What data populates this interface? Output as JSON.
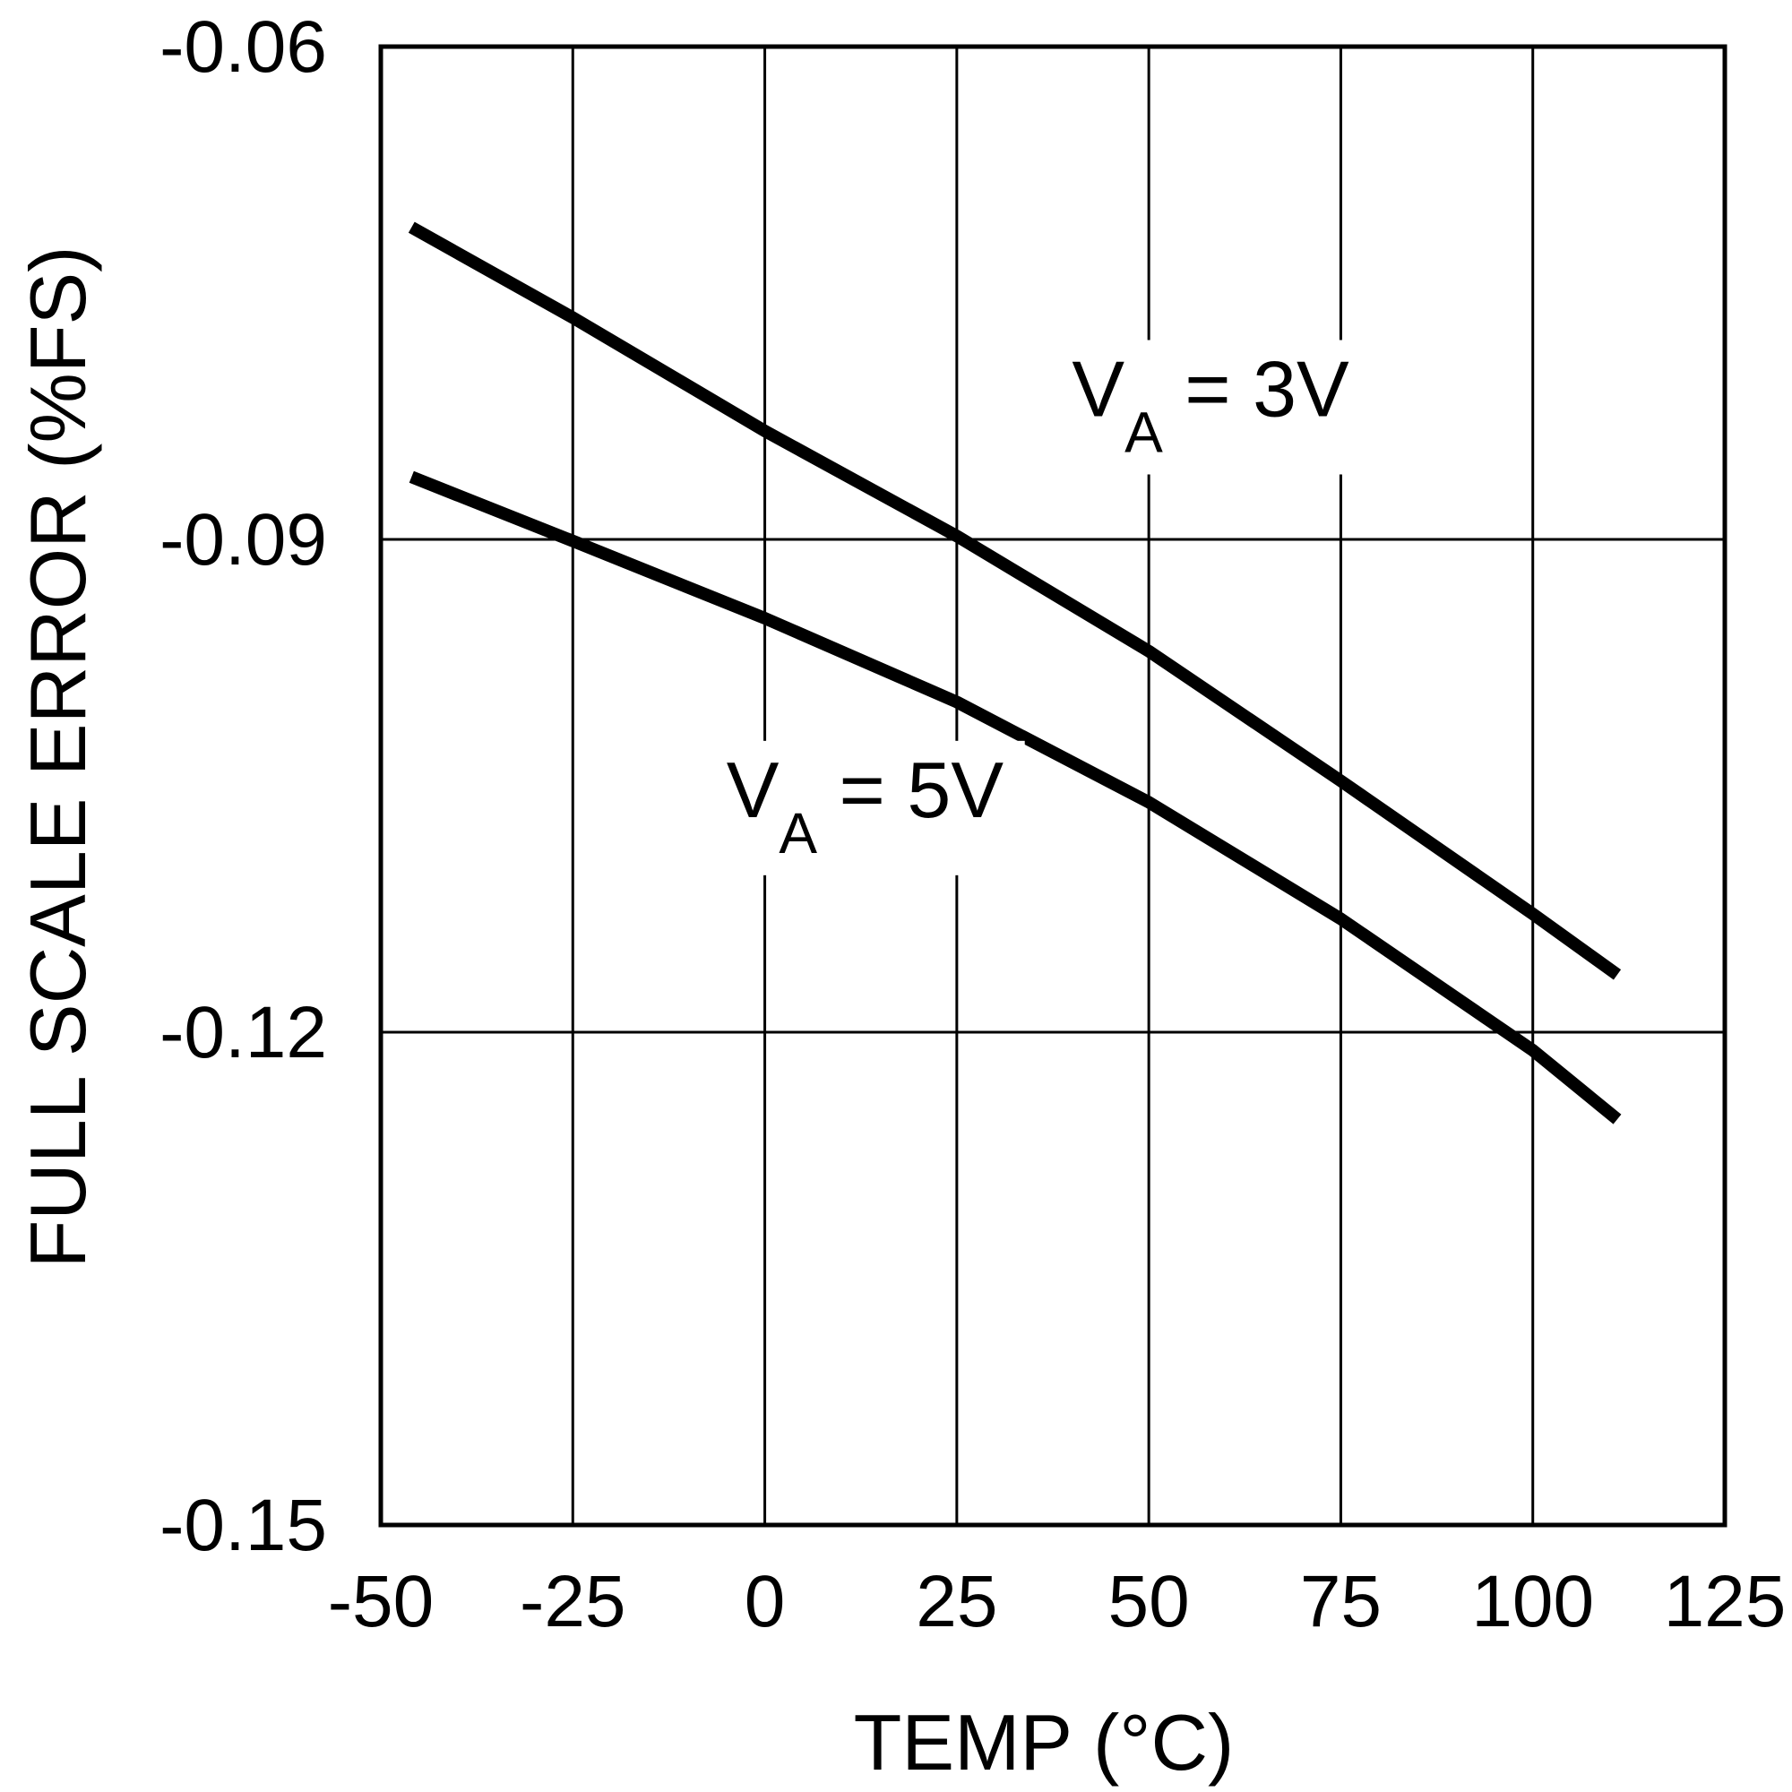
{
  "chart_data": {
    "type": "line",
    "title": "",
    "xlabel": "TEMP (°C)",
    "ylabel": "FULL SCALE ERROR (%FS)",
    "xlim": [
      -50,
      125
    ],
    "ylim": [
      -0.15,
      -0.06
    ],
    "x_ticks": [
      -50,
      -25,
      0,
      25,
      50,
      75,
      100,
      125
    ],
    "x_tick_labels": [
      "-50",
      "-25",
      "0",
      "25",
      "50",
      "75",
      "100",
      "125"
    ],
    "y_ticks": [
      -0.06,
      -0.09,
      -0.12,
      -0.15
    ],
    "y_tick_labels": [
      "-0.06",
      "-0.09",
      "-0.12",
      "-0.15"
    ],
    "grid": true,
    "series": [
      {
        "name": "VA = 3V",
        "label_main": "V",
        "label_sub": "A",
        "label_rest": " = 3V",
        "x": [
          -46,
          -25,
          0,
          25,
          50,
          75,
          100,
          111
        ],
        "values": [
          -0.071,
          -0.0765,
          -0.0834,
          -0.0898,
          -0.0968,
          -0.1047,
          -0.1128,
          -0.1165
        ]
      },
      {
        "name": "VA = 5V",
        "label_main": "V",
        "label_sub": "A",
        "label_rest": " = 5V",
        "x": [
          -46,
          -25,
          0,
          25,
          50,
          75,
          100,
          111
        ],
        "values": [
          -0.0862,
          -0.0901,
          -0.0948,
          -0.0999,
          -0.106,
          -0.1131,
          -0.1211,
          -0.1253
        ]
      }
    ]
  }
}
